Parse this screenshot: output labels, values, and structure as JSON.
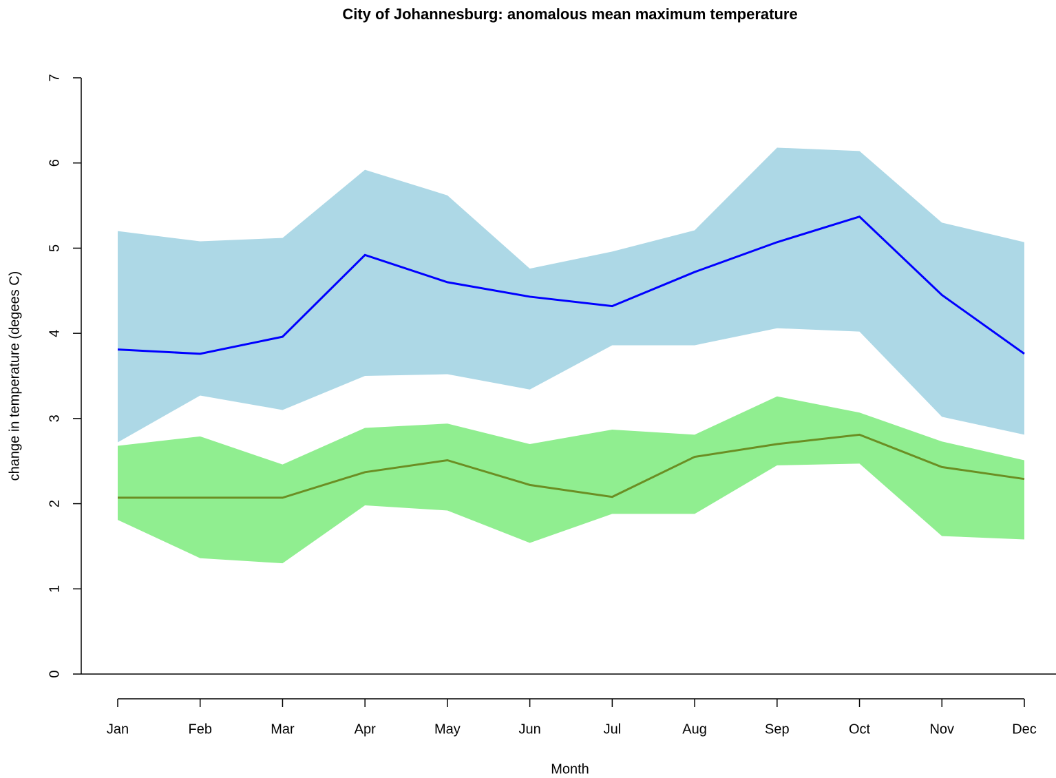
{
  "chart_data": {
    "type": "line",
    "title": "City of Johannesburg: anomalous mean maximum temperature",
    "x_label": "Month",
    "y_label": "change in temperature (degees C)",
    "categories": [
      "Jan",
      "Feb",
      "Mar",
      "Apr",
      "May",
      "Jun",
      "Jul",
      "Aug",
      "Sep",
      "Oct",
      "Nov",
      "Dec"
    ],
    "bands": [
      {
        "color": "#add8e6",
        "upper": [
          5.2,
          5.08,
          5.12,
          5.92,
          5.62,
          4.76,
          4.96,
          5.21,
          6.18,
          6.14,
          5.3,
          5.07
        ],
        "lower": [
          2.72,
          3.27,
          3.1,
          3.5,
          3.52,
          3.34,
          3.86,
          3.86,
          4.06,
          4.02,
          3.02,
          2.81
        ]
      },
      {
        "color": "#90ee90",
        "upper": [
          2.68,
          2.79,
          2.46,
          2.89,
          2.94,
          2.7,
          2.87,
          2.81,
          3.26,
          3.07,
          2.73,
          2.51
        ],
        "lower": [
          1.81,
          1.36,
          1.3,
          1.98,
          1.92,
          1.54,
          1.88,
          1.88,
          2.45,
          2.47,
          1.62,
          1.58
        ]
      }
    ],
    "series": [
      {
        "color": "#0000ff",
        "values": [
          3.81,
          3.76,
          3.96,
          4.92,
          4.6,
          4.43,
          4.32,
          4.72,
          5.07,
          5.37,
          4.45,
          3.76
        ]
      },
      {
        "color": "#6b8e23",
        "values": [
          2.07,
          2.07,
          2.07,
          2.37,
          2.51,
          2.22,
          2.08,
          2.55,
          2.7,
          2.81,
          2.43,
          2.29
        ]
      }
    ],
    "ylim": [
      0,
      7
    ],
    "yticks": [
      0,
      1,
      2,
      3,
      4,
      5,
      6,
      7
    ]
  }
}
